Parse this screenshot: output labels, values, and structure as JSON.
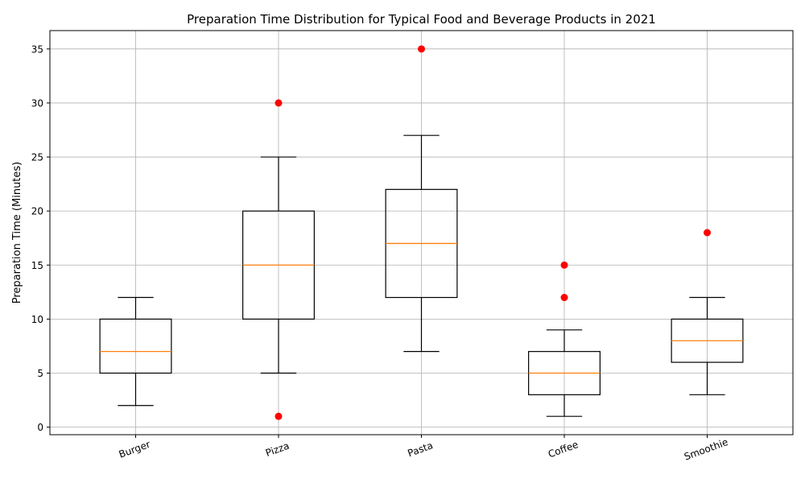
{
  "chart_data": {
    "type": "box",
    "title": "Preparation Time Distribution for Typical Food and Beverage Products in 2021",
    "xlabel": "",
    "ylabel": "Preparation Time (Minutes)",
    "ylim": [
      -0.7,
      36.7
    ],
    "yticks": [
      0,
      5,
      10,
      15,
      20,
      25,
      30,
      35
    ],
    "grid": true,
    "categories": [
      "Burger",
      "Pizza",
      "Pasta",
      "Coffee",
      "Smoothie"
    ],
    "boxes": [
      {
        "name": "Burger",
        "whisker_low": 2,
        "q1": 5,
        "median": 7,
        "q3": 10,
        "whisker_high": 12,
        "outliers": []
      },
      {
        "name": "Pizza",
        "whisker_low": 5,
        "q1": 10,
        "median": 15,
        "q3": 20,
        "whisker_high": 25,
        "outliers": [
          30,
          1
        ]
      },
      {
        "name": "Pasta",
        "whisker_low": 7,
        "q1": 12,
        "median": 17,
        "q3": 22,
        "whisker_high": 27,
        "outliers": [
          35
        ]
      },
      {
        "name": "Coffee",
        "whisker_low": 1,
        "q1": 3,
        "median": 5,
        "q3": 7,
        "whisker_high": 9,
        "outliers": [
          15,
          12
        ]
      },
      {
        "name": "Smoothie",
        "whisker_low": 3,
        "q1": 6,
        "median": 8,
        "q3": 10,
        "whisker_high": 12,
        "outliers": [
          18
        ]
      }
    ],
    "colors": {
      "box": "#000000",
      "median": "#ff7f0e",
      "outlier": "#ff0000",
      "grid": "#b0b0b0"
    }
  }
}
